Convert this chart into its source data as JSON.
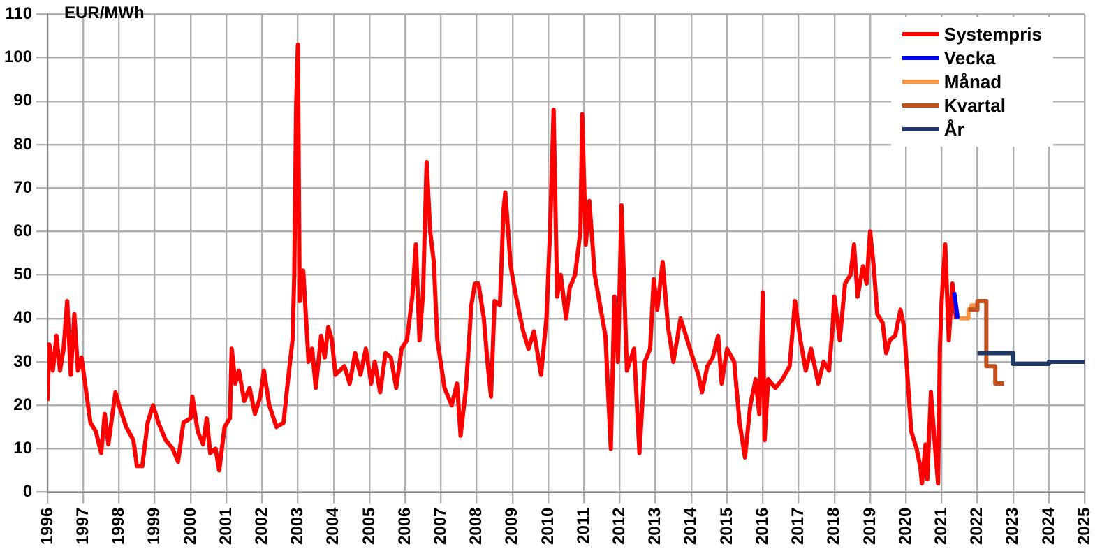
{
  "chart_data": {
    "type": "line",
    "ylabel": "EUR/MWh",
    "xlim": [
      1996,
      2025
    ],
    "xticks": [
      1996,
      1997,
      1998,
      1999,
      2000,
      2001,
      2002,
      2003,
      2004,
      2005,
      2006,
      2007,
      2008,
      2009,
      2010,
      2011,
      2012,
      2013,
      2014,
      2015,
      2016,
      2017,
      2018,
      2019,
      2020,
      2021,
      2022,
      2023,
      2024,
      2025
    ],
    "ylim": [
      0,
      110
    ],
    "yticks": [
      0,
      10,
      20,
      30,
      40,
      50,
      60,
      70,
      80,
      90,
      100,
      110
    ],
    "grid": true,
    "legend": "top right",
    "marker": "none",
    "line_style": "solid",
    "series": [
      {
        "name": "Systempris",
        "color": "#ff0000",
        "x": [
          1996.0,
          1996.05,
          1996.15,
          1996.25,
          1996.35,
          1996.45,
          1996.55,
          1996.65,
          1996.75,
          1996.85,
          1996.95,
          1997.1,
          1997.2,
          1997.35,
          1997.5,
          1997.6,
          1997.7,
          1997.9,
          1998.0,
          1998.2,
          1998.4,
          1998.5,
          1998.65,
          1998.8,
          1998.95,
          1999.1,
          1999.3,
          1999.5,
          1999.65,
          1999.8,
          2000.0,
          2000.05,
          2000.2,
          2000.35,
          2000.45,
          2000.55,
          2000.7,
          2000.8,
          2000.95,
          2001.1,
          2001.15,
          2001.25,
          2001.35,
          2001.5,
          2001.65,
          2001.8,
          2001.95,
          2002.05,
          2002.2,
          2002.4,
          2002.6,
          2002.7,
          2002.85,
          2002.9,
          2002.95,
          2003.0,
          2003.05,
          2003.15,
          2003.3,
          2003.4,
          2003.5,
          2003.65,
          2003.75,
          2003.85,
          2003.95,
          2004.05,
          2004.3,
          2004.45,
          2004.6,
          2004.75,
          2004.9,
          2005.05,
          2005.15,
          2005.3,
          2005.45,
          2005.6,
          2005.75,
          2005.9,
          2006.05,
          2006.2,
          2006.3,
          2006.4,
          2006.5,
          2006.6,
          2006.7,
          2006.8,
          2006.9,
          2007.1,
          2007.3,
          2007.45,
          2007.55,
          2007.7,
          2007.85,
          2007.95,
          2008.05,
          2008.2,
          2008.3,
          2008.4,
          2008.5,
          2008.65,
          2008.75,
          2008.8,
          2008.95,
          2009.1,
          2009.3,
          2009.45,
          2009.6,
          2009.8,
          2009.95,
          2010.05,
          2010.15,
          2010.25,
          2010.35,
          2010.5,
          2010.6,
          2010.75,
          2010.9,
          2010.95,
          2011.05,
          2011.15,
          2011.3,
          2011.45,
          2011.6,
          2011.75,
          2011.85,
          2011.95,
          2012.05,
          2012.2,
          2012.4,
          2012.55,
          2012.7,
          2012.85,
          2012.95,
          2013.05,
          2013.2,
          2013.35,
          2013.5,
          2013.7,
          2013.85,
          2014.0,
          2014.2,
          2014.3,
          2014.45,
          2014.6,
          2014.75,
          2014.85,
          2015.0,
          2015.2,
          2015.35,
          2015.5,
          2015.65,
          2015.8,
          2015.9,
          2016.0,
          2016.05,
          2016.15,
          2016.35,
          2016.55,
          2016.75,
          2016.9,
          2017.05,
          2017.2,
          2017.35,
          2017.55,
          2017.7,
          2017.85,
          2017.95,
          2018.0,
          2018.15,
          2018.3,
          2018.45,
          2018.55,
          2018.65,
          2018.8,
          2018.9,
          2019.0,
          2019.1,
          2019.2,
          2019.35,
          2019.45,
          2019.55,
          2019.7,
          2019.85,
          2019.95,
          2020.05,
          2020.15,
          2020.3,
          2020.4,
          2020.45,
          2020.55,
          2020.6,
          2020.7,
          2020.8,
          2020.9,
          2020.95,
          2021.0,
          2021.1,
          2021.2,
          2021.3,
          2021.4
        ],
        "values": [
          21,
          34,
          28,
          36,
          28,
          33,
          44,
          27,
          41,
          28,
          31,
          22,
          16,
          14,
          9,
          18,
          11,
          23,
          20,
          15,
          12,
          6,
          6,
          16,
          20,
          16,
          12,
          10,
          7,
          16,
          17,
          22,
          14,
          11,
          17,
          9,
          10,
          5,
          15,
          17,
          33,
          25,
          28,
          21,
          24,
          18,
          22,
          28,
          20,
          15,
          16,
          24,
          35,
          50,
          88,
          103,
          44,
          51,
          30,
          33,
          24,
          36,
          31,
          38,
          35,
          27,
          29,
          25,
          32,
          27,
          33,
          25,
          30,
          23,
          32,
          31,
          24,
          33,
          35,
          45,
          57,
          35,
          46,
          76,
          60,
          53,
          35,
          24,
          20,
          25,
          13,
          24,
          43,
          48,
          48,
          40,
          30,
          22,
          44,
          43,
          65,
          69,
          52,
          45,
          37,
          33,
          37,
          27,
          40,
          60,
          88,
          45,
          50,
          40,
          47,
          50,
          60,
          87,
          57,
          67,
          50,
          43,
          36,
          10,
          45,
          30,
          66,
          28,
          33,
          9,
          30,
          33,
          49,
          42,
          53,
          38,
          30,
          40,
          36,
          32,
          27,
          23,
          29,
          31,
          36,
          25,
          33,
          30,
          16,
          8,
          20,
          26,
          18,
          46,
          12,
          26,
          24,
          26,
          29,
          44,
          35,
          28,
          33,
          25,
          30,
          28,
          38,
          45,
          35,
          48,
          50,
          57,
          45,
          52,
          48,
          60,
          52,
          41,
          39,
          32,
          35,
          36,
          42,
          38,
          26,
          14,
          10,
          6,
          2,
          11,
          3,
          23,
          12,
          2,
          33,
          44,
          57,
          35,
          48,
          40
        ]
      },
      {
        "name": "Vecka",
        "color": "#0000ff",
        "x": [
          2021.35,
          2021.45
        ],
        "values": [
          46,
          40
        ]
      },
      {
        "name": "Månad",
        "type": "step",
        "color": "#f79646",
        "x": [
          2021.5,
          2021.75,
          2021.83,
          2022.0
        ],
        "values": [
          40,
          42,
          43,
          43
        ]
      },
      {
        "name": "Kvartal",
        "type": "step",
        "color": "#c0501e",
        "x": [
          2021.75,
          2022.0,
          2022.25,
          2022.5,
          2022.75
        ],
        "values": [
          42,
          44,
          29,
          25,
          25
        ]
      },
      {
        "name": "År",
        "type": "step",
        "color": "#1f3864",
        "x": [
          2022,
          2023,
          2024,
          2025
        ],
        "values": [
          32,
          29.5,
          30,
          30
        ]
      }
    ]
  }
}
